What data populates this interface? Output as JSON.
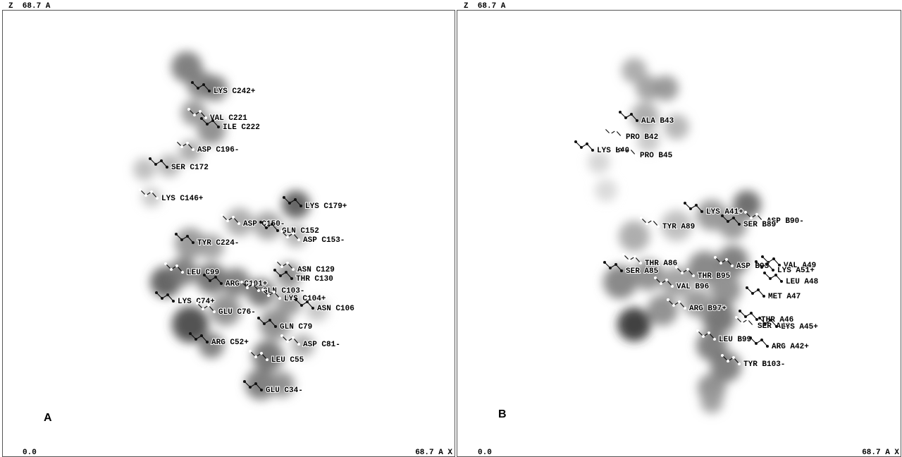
{
  "panels": [
    {
      "label": "A",
      "z_axis": "Z  68.7 A",
      "origin": "0.0",
      "x_axis": "68.7 A X",
      "residues": [
        "LYS C242+",
        "VAL C221",
        "ILE C222",
        "ASP C196-",
        "SER C172",
        "LYS C146+",
        "LYS C179+",
        "ASP C150-",
        "GLN C152",
        "ASP C153-",
        "TYR C224-",
        "ASN C129",
        "THR C130",
        "LEU C99",
        "ARG C101+",
        "GLN C103-",
        "LYS C74+",
        "LYS C104+",
        "ASN C106",
        "GLU C76-",
        "GLN C79",
        "ASP C81-",
        "ARG C52+",
        "LEU C55",
        "GLU C34-"
      ]
    },
    {
      "label": "B",
      "z_axis": "Z  68.7 A",
      "origin": "0.0",
      "x_axis": "68.7 A X",
      "residues": [
        "ALA B43",
        "PRO B42",
        "LYS B40",
        "PRO B45",
        "LYS A41+",
        "ASP B90-",
        "SER B89",
        "TYR A89",
        "VAL A49",
        "ASP B93",
        "LYS A51+",
        "THR A86",
        "SER A85",
        "THR B95",
        "LEU A48",
        "VAL B96",
        "MET A47",
        "ARG B97+",
        "THR A46",
        "SER A44",
        "LYS A45+",
        "LEU B99",
        "ARG A42+",
        "TYR B103-"
      ]
    }
  ]
}
